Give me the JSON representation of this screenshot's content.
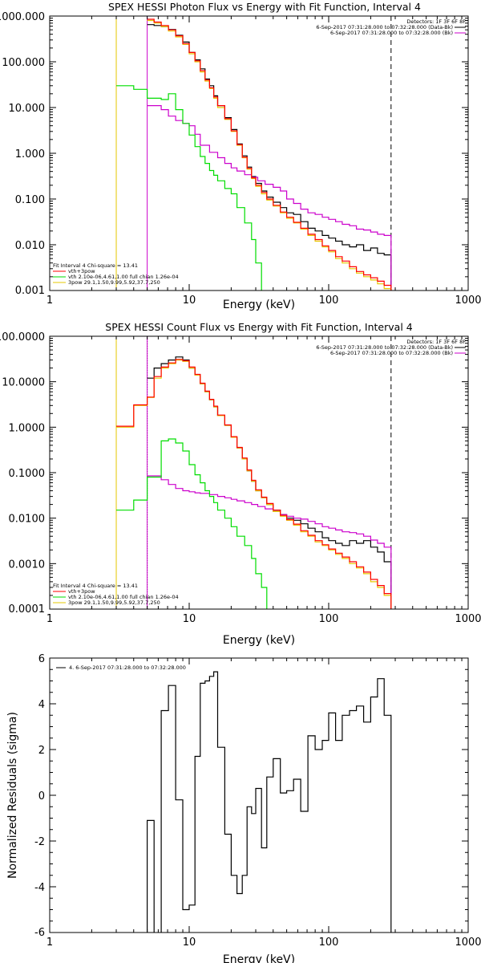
{
  "chart_data": [
    {
      "type": "line",
      "title": "SPEX HESSI Photon Flux vs Energy with Fit Function, Interval 4",
      "xlabel": "Energy (keV)",
      "ylabel": "",
      "xscale": "log",
      "yscale": "log",
      "xlim": [
        1,
        1000
      ],
      "ylim": [
        0.001,
        1000
      ],
      "xticks": [
        1,
        10,
        100,
        1000
      ],
      "xtick_labels": [
        "1",
        "10",
        "100",
        "1000"
      ],
      "yticks": [
        0.001,
        0.01,
        0.1,
        1,
        10,
        100,
        1000
      ],
      "ytick_labels": [
        "0.001",
        "0.010",
        "0.100",
        "1.000",
        "10.000",
        "100.000",
        "1000.000"
      ],
      "vlines": [
        {
          "x": 3,
          "color": "#e6c800",
          "style": "solid"
        },
        {
          "x": 5,
          "color": "#cc00cc",
          "style": "solid"
        },
        {
          "x": 280,
          "color": "#000000",
          "style": "dashed"
        }
      ],
      "legend_top_right": {
        "header": "Detectors: 1F 3F 6F 8F",
        "lines": [
          {
            "text": "6-Sep-2017 07:31:28.000 to 07:32:28.000 (Data-Bk)",
            "color": "#000000"
          },
          {
            "text": "6-Sep-2017 07:31:28.000 to 07:32:28.000 (Bk)",
            "color": "#cc00cc"
          }
        ]
      },
      "legend_bottom_left": {
        "header": "Fit Interval  4    Chi-square = 13.41",
        "lines": [
          {
            "text": "vth+3pow",
            "color": "#ff0000"
          },
          {
            "text": "vth 2.10e-06,4.61,1.00   full chian 1.26e-04",
            "color": "#00dd00"
          },
          {
            "text": "3pow 29.1,1.50,9.99,5.92,37.7,250",
            "color": "#e6c800"
          }
        ]
      },
      "series": [
        {
          "color": "#000000",
          "x": [
            5,
            5.6,
            6.3,
            7.1,
            8,
            9,
            10,
            11,
            12,
            13,
            14,
            15,
            16,
            18,
            20,
            22,
            24,
            26,
            28,
            30,
            33,
            36,
            40,
            45,
            50,
            56,
            63,
            71,
            80,
            90,
            100,
            112,
            125,
            141,
            158,
            178,
            200,
            224,
            250,
            280
          ],
          "y": [
            650,
            620,
            590,
            510,
            380,
            270,
            160,
            110,
            70,
            42,
            30,
            18,
            11,
            6,
            3.3,
            1.6,
            0.88,
            0.5,
            0.31,
            0.22,
            0.15,
            0.11,
            0.085,
            0.065,
            0.05,
            0.046,
            0.032,
            0.023,
            0.02,
            0.016,
            0.014,
            0.012,
            0.01,
            0.009,
            0.01,
            0.0075,
            0.0085,
            0.0065,
            0.006,
            0.0045
          ]
        },
        {
          "color": "#cc00cc",
          "x": [
            5,
            6.3,
            7.1,
            8,
            9,
            10,
            11,
            12,
            14,
            16,
            18,
            20,
            22,
            25,
            28,
            31,
            35,
            40,
            45,
            50,
            56,
            63,
            71,
            80,
            90,
            100,
            112,
            125,
            141,
            158,
            178,
            200,
            224,
            250,
            280
          ],
          "y": [
            11,
            9,
            6.5,
            5.2,
            4.5,
            4,
            2.6,
            1.5,
            1.05,
            0.8,
            0.6,
            0.48,
            0.41,
            0.34,
            0.3,
            0.25,
            0.21,
            0.18,
            0.15,
            0.1,
            0.08,
            0.06,
            0.05,
            0.046,
            0.04,
            0.036,
            0.032,
            0.028,
            0.026,
            0.022,
            0.021,
            0.019,
            0.017,
            0.016,
            0.014
          ]
        },
        {
          "color": "#00dd00",
          "x": [
            3,
            4,
            5,
            6.3,
            7.1,
            8,
            9,
            10,
            11,
            12,
            13,
            14,
            15,
            16,
            18,
            20,
            22,
            25,
            28,
            30,
            33
          ],
          "y": [
            30,
            25,
            16,
            15,
            20,
            9,
            4.5,
            2.5,
            1.4,
            0.85,
            0.6,
            0.42,
            0.33,
            0.25,
            0.17,
            0.13,
            0.065,
            0.03,
            0.013,
            0.004,
            0.0015
          ]
        },
        {
          "color": "#e6c800",
          "x": [
            5,
            5.6,
            6.3,
            7.1,
            8,
            9,
            10,
            11,
            12,
            13,
            14,
            15,
            16,
            18,
            20,
            22,
            24,
            26,
            28,
            30,
            33,
            36,
            40,
            45,
            50,
            56,
            63,
            71,
            80,
            90,
            100,
            112,
            125,
            141,
            158,
            178,
            200,
            224,
            250,
            280
          ],
          "y": [
            800,
            700,
            590,
            470,
            350,
            240,
            150,
            100,
            60,
            38,
            26,
            16,
            10,
            5.5,
            3,
            1.5,
            0.8,
            0.45,
            0.28,
            0.19,
            0.13,
            0.095,
            0.07,
            0.05,
            0.038,
            0.03,
            0.022,
            0.016,
            0.012,
            0.009,
            0.007,
            0.005,
            0.004,
            0.003,
            0.0024,
            0.002,
            0.0017,
            0.0014,
            0.0011,
            0.001
          ]
        },
        {
          "color": "#ff0000",
          "x": [
            5,
            5.6,
            6.3,
            7.1,
            8,
            9,
            10,
            11,
            12,
            13,
            14,
            15,
            16,
            18,
            20,
            22,
            24,
            26,
            28,
            30,
            33,
            36,
            40,
            45,
            50,
            56,
            63,
            71,
            80,
            90,
            100,
            112,
            125,
            141,
            158,
            178,
            200,
            224,
            250,
            280
          ],
          "y": [
            850,
            740,
            620,
            500,
            370,
            250,
            160,
            105,
            64,
            40,
            27,
            17,
            11,
            5.7,
            3.1,
            1.55,
            0.82,
            0.47,
            0.29,
            0.2,
            0.14,
            0.1,
            0.073,
            0.052,
            0.04,
            0.031,
            0.023,
            0.017,
            0.013,
            0.0095,
            0.0075,
            0.0055,
            0.0044,
            0.0033,
            0.0026,
            0.0022,
            0.0019,
            0.0016,
            0.0013,
            0.0012
          ]
        }
      ]
    },
    {
      "type": "line",
      "title": "SPEX HESSI Count Flux vs Energy with Fit Function, Interval 4",
      "xlabel": "Energy (keV)",
      "ylabel": "",
      "xscale": "log",
      "yscale": "log",
      "xlim": [
        1,
        1000
      ],
      "ylim": [
        0.0001,
        100
      ],
      "xticks": [
        1,
        10,
        100,
        1000
      ],
      "xtick_labels": [
        "1",
        "10",
        "100",
        "1000"
      ],
      "yticks": [
        0.0001,
        0.001,
        0.01,
        0.1,
        1,
        10,
        100
      ],
      "ytick_labels": [
        "0.0001",
        "0.0010",
        "0.0100",
        "0.1000",
        "1.0000",
        "10.0000",
        "100.0000"
      ],
      "vlines": [
        {
          "x": 3,
          "color": "#e6c800",
          "style": "solid"
        },
        {
          "x": 5,
          "color": "#000000",
          "style": "dotted"
        },
        {
          "x": 5,
          "color": "#cc00cc",
          "style": "solid"
        },
        {
          "x": 280,
          "color": "#000000",
          "style": "dashed"
        }
      ],
      "legend_top_right": {
        "header": "Detectors: 1F 3F 6F 8F",
        "lines": [
          {
            "text": "6-Sep-2017 07:31:28.000 to 07:32:28.000 (Data-Bk)",
            "color": "#000000"
          },
          {
            "text": "6-Sep-2017 07:31:28.000 to 07:32:28.000 (Bk)",
            "color": "#cc00cc"
          }
        ]
      },
      "legend_bottom_left": {
        "header": "Fit Interval  4    Chi-square = 13.41",
        "lines": [
          {
            "text": "vth+3pow",
            "color": "#ff0000"
          },
          {
            "text": "vth 2.10e-06,4.61,1.00   full chian 1.26e-04",
            "color": "#00dd00"
          },
          {
            "text": "3pow 29.1,1.50,9.99,5.92,37.7,250",
            "color": "#e6c800"
          }
        ]
      },
      "series": [
        {
          "color": "#000000",
          "x": [
            5,
            5.6,
            6.3,
            7.1,
            8,
            9,
            10,
            11,
            12,
            13,
            14,
            15,
            16,
            18,
            20,
            22,
            24,
            26,
            28,
            30,
            33,
            36,
            40,
            45,
            50,
            56,
            63,
            71,
            80,
            90,
            100,
            112,
            125,
            141,
            158,
            178,
            200,
            224,
            250,
            280
          ],
          "y": [
            12,
            20,
            25,
            30,
            35,
            30,
            20,
            14,
            9,
            6,
            4,
            2.8,
            1.8,
            1.1,
            0.6,
            0.35,
            0.2,
            0.11,
            0.065,
            0.04,
            0.028,
            0.02,
            0.015,
            0.012,
            0.01,
            0.009,
            0.0075,
            0.006,
            0.005,
            0.0037,
            0.0032,
            0.0028,
            0.0025,
            0.0032,
            0.0028,
            0.0032,
            0.0023,
            0.0018,
            0.0011,
            0.0008
          ]
        },
        {
          "color": "#cc00cc",
          "x": [
            5,
            6.3,
            7.1,
            8,
            9,
            10,
            11,
            12,
            14,
            16,
            18,
            20,
            22,
            25,
            28,
            31,
            35,
            40,
            45,
            50,
            56,
            63,
            71,
            80,
            90,
            100,
            112,
            125,
            141,
            158,
            178,
            200,
            224,
            250,
            280
          ],
          "y": [
            0.085,
            0.07,
            0.055,
            0.045,
            0.04,
            0.038,
            0.036,
            0.035,
            0.033,
            0.03,
            0.028,
            0.026,
            0.024,
            0.022,
            0.02,
            0.018,
            0.016,
            0.014,
            0.012,
            0.011,
            0.01,
            0.0095,
            0.0085,
            0.0075,
            0.0065,
            0.006,
            0.0055,
            0.005,
            0.0048,
            0.0045,
            0.004,
            0.0033,
            0.0028,
            0.0023,
            0.0019
          ]
        },
        {
          "color": "#00dd00",
          "x": [
            3,
            4,
            5,
            6.3,
            7.1,
            8,
            9,
            10,
            11,
            12,
            13,
            14,
            15,
            16,
            18,
            20,
            22,
            25,
            28,
            30,
            33,
            36
          ],
          "y": [
            0.015,
            0.025,
            0.08,
            0.5,
            0.55,
            0.45,
            0.3,
            0.15,
            0.09,
            0.06,
            0.04,
            0.03,
            0.022,
            0.015,
            0.01,
            0.0065,
            0.004,
            0.0025,
            0.0013,
            0.0006,
            0.0003,
            0.0001
          ]
        },
        {
          "color": "#e6c800",
          "x": [
            3,
            4,
            5,
            5.6,
            6.3,
            7.1,
            8,
            9,
            10,
            11,
            12,
            13,
            14,
            15,
            16,
            18,
            20,
            22,
            24,
            26,
            28,
            30,
            33,
            36,
            40,
            45,
            50,
            56,
            63,
            71,
            80,
            90,
            100,
            112,
            125,
            141,
            158,
            178,
            200,
            224,
            250,
            280
          ],
          "y": [
            1,
            3,
            4.5,
            12,
            20,
            25,
            30,
            28,
            20,
            14,
            9,
            6,
            4,
            2.8,
            1.8,
            1.1,
            0.6,
            0.35,
            0.2,
            0.11,
            0.065,
            0.04,
            0.028,
            0.02,
            0.014,
            0.011,
            0.009,
            0.007,
            0.005,
            0.004,
            0.003,
            0.0025,
            0.002,
            0.0016,
            0.0013,
            0.001,
            0.0008,
            0.0006,
            0.0004,
            0.0003,
            0.0002,
            0.00015
          ]
        },
        {
          "color": "#ff0000",
          "x": [
            3,
            4,
            5,
            5.6,
            6.3,
            7.1,
            8,
            9,
            10,
            11,
            12,
            13,
            14,
            15,
            16,
            18,
            20,
            22,
            24,
            26,
            28,
            30,
            33,
            36,
            40,
            45,
            50,
            56,
            63,
            71,
            80,
            90,
            100,
            112,
            125,
            141,
            158,
            178,
            200,
            224,
            250,
            280
          ],
          "y": [
            1.05,
            3.1,
            4.6,
            13,
            21,
            26,
            31,
            29,
            21,
            14.5,
            9.3,
            6.2,
            4.1,
            2.9,
            1.85,
            1.12,
            0.62,
            0.36,
            0.21,
            0.115,
            0.068,
            0.042,
            0.029,
            0.021,
            0.015,
            0.0115,
            0.0093,
            0.0074,
            0.0053,
            0.0042,
            0.0032,
            0.0026,
            0.0021,
            0.0017,
            0.0014,
            0.0011,
            0.00085,
            0.00065,
            0.00045,
            0.00033,
            0.00022,
            0.00016
          ]
        }
      ]
    },
    {
      "type": "line",
      "title": "",
      "xlabel": "Energy (keV)",
      "ylabel": "Normalized Residuals (sigma)",
      "xscale": "log",
      "yscale": "linear",
      "xlim": [
        1,
        1000
      ],
      "ylim": [
        -6,
        6
      ],
      "xticks": [
        1,
        10,
        100,
        1000
      ],
      "xtick_labels": [
        "1",
        "10",
        "100",
        "1000"
      ],
      "yticks": [
        -6,
        -4,
        -2,
        0,
        2,
        4,
        6
      ],
      "ytick_labels": [
        "-6",
        "-4",
        "-2",
        "0",
        "2",
        "4",
        "6"
      ],
      "legend_top_left": {
        "text": "4.  6-Sep-2017 07:31:28.000 to 07:32:28.000",
        "color": "#000000"
      },
      "series": [
        {
          "color": "#000000",
          "drawstyle": "steps",
          "edges": [
            5,
            5.6,
            6.3,
            7.1,
            8,
            9,
            10,
            11,
            12,
            13,
            14,
            15,
            16,
            18,
            20,
            22,
            24,
            26,
            28,
            30,
            33,
            36,
            40,
            45,
            50,
            56,
            63,
            71,
            80,
            90,
            100,
            112,
            125,
            141,
            158,
            178,
            200,
            224,
            250,
            280
          ],
          "values": [
            -1.1,
            -6.2,
            3.7,
            4.8,
            -0.2,
            -5.0,
            -4.8,
            1.7,
            4.9,
            5.0,
            5.2,
            5.4,
            2.1,
            -1.7,
            -3.5,
            -4.3,
            -3.5,
            -0.5,
            -0.8,
            0.3,
            -2.3,
            0.8,
            1.6,
            0.1,
            0.2,
            0.7,
            -0.7,
            2.6,
            2.0,
            2.4,
            3.6,
            2.4,
            3.5,
            3.7,
            3.9,
            3.2,
            4.3,
            5.1,
            3.5
          ]
        }
      ]
    }
  ]
}
